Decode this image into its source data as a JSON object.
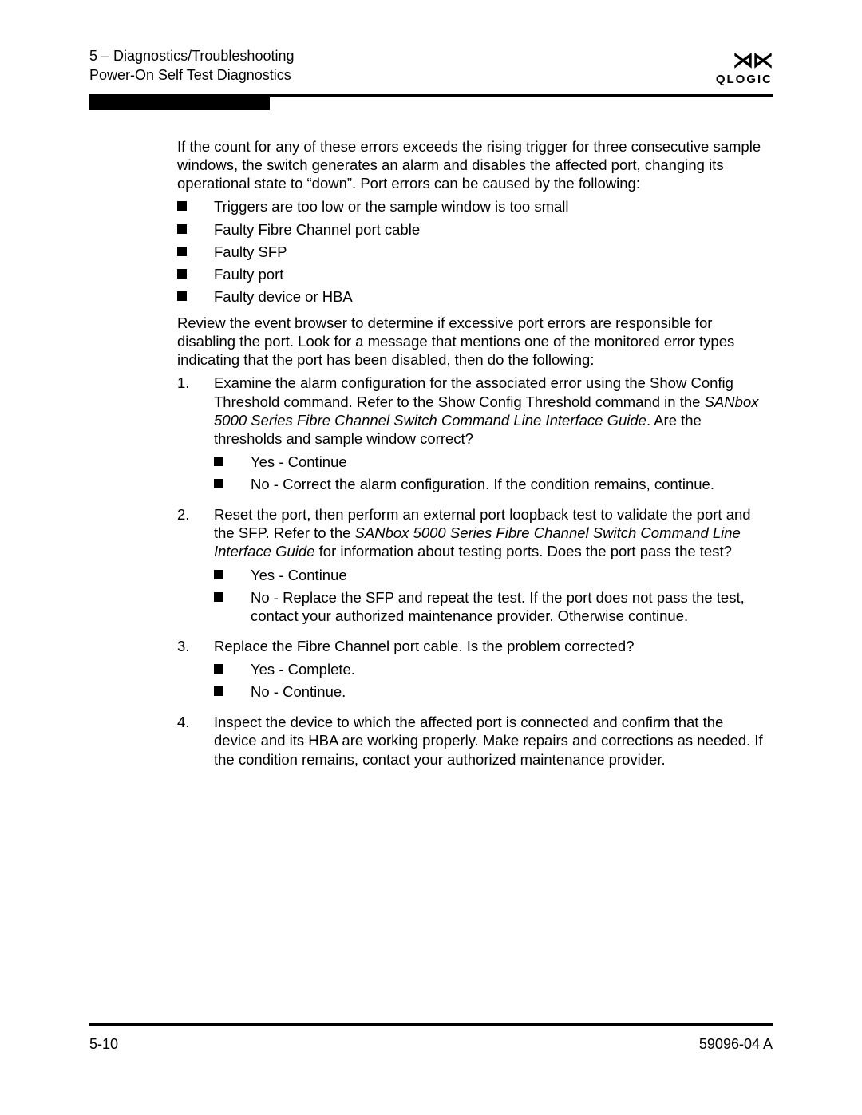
{
  "header": {
    "chapter_line": "5 – Diagnostics/Troubleshooting",
    "section_line": "Power-On Self Test Diagnostics"
  },
  "brand": {
    "mark": "⋊⋉",
    "word": "QLOGIC"
  },
  "intro_paragraph": "If the count for any of these errors exceeds the rising trigger for three consecutive sample windows, the switch generates an alarm and disables the affected port, changing its operational state to “down”. Port errors can be caused by the following:",
  "causes": [
    "Triggers are too low or the sample window is too small",
    "Faulty Fibre Channel port cable",
    "Faulty SFP",
    "Faulty port",
    "Faulty device or HBA"
  ],
  "review_paragraph": "Review the event browser to determine if excessive port errors are responsible for disabling the port. Look for a message that mentions one of the monitored error types indicating that the port has been disabled, then do the following:",
  "steps": [
    {
      "num": "1.",
      "pre": "Examine the alarm configuration for the associated error using the Show Config Threshold command. Refer to the Show Config Threshold command in the ",
      "ital": "SANbox 5000 Series Fibre Channel Switch Command Line Interface Guide",
      "post": ". Are the thresholds and sample window correct?",
      "subs": [
        "Yes - Continue",
        "No - Correct the alarm configuration. If the condition remains, continue."
      ]
    },
    {
      "num": "2.",
      "pre": "Reset the port, then perform an external port loopback test to validate the port and the SFP. Refer to the ",
      "ital": "SANbox 5000 Series Fibre Channel Switch Command Line Interface Guide",
      "post": " for information about testing ports. Does the port pass the test?",
      "subs": [
        "Yes - Continue",
        "No - Replace the SFP and repeat the test. If the port does not pass the test, contact your authorized maintenance provider. Otherwise continue."
      ]
    },
    {
      "num": "3.",
      "pre": "Replace the Fibre Channel port cable. Is the problem corrected?",
      "ital": "",
      "post": "",
      "subs": [
        "Yes - Complete.",
        "No - Continue."
      ]
    },
    {
      "num": "4.",
      "pre": "Inspect the device to which the affected port is connected and confirm that the device and its HBA are working properly. Make repairs and corrections as needed. If the condition remains, contact your authorized maintenance provider.",
      "ital": "",
      "post": "",
      "subs": []
    }
  ],
  "footer": {
    "page_num": "5-10",
    "doc_num": "59096-04  A"
  },
  "colors": {
    "text": "#000000",
    "background": "#ffffff",
    "rule": "#000000"
  },
  "typography": {
    "body_font_size_pt": 14,
    "header_font_size_pt": 14,
    "line_height": 1.25,
    "font_family": "Arial"
  }
}
